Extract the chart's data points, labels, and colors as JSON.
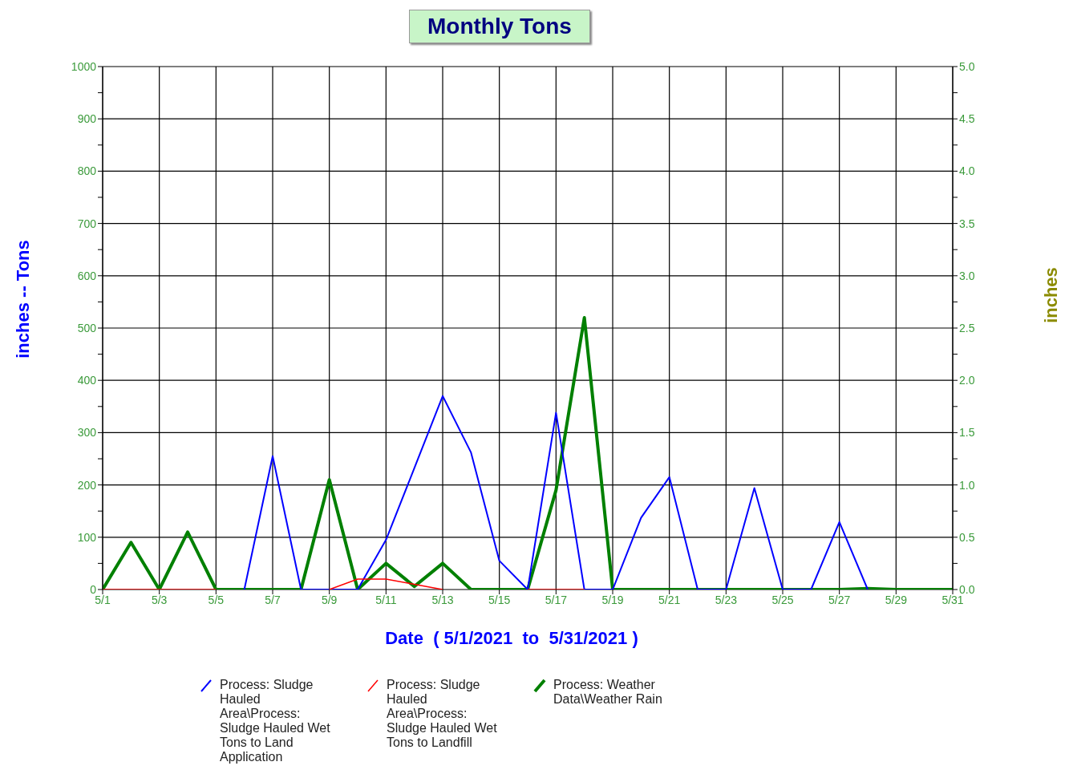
{
  "chart_data": {
    "type": "line",
    "title": "Monthly Tons",
    "xlabel": "Date  ( 5/1/2021  to  5/31/2021 )",
    "ylabel": "inches -- Tons",
    "y2label": "inches",
    "categories": [
      "5/1",
      null,
      "5/3",
      null,
      "5/5",
      null,
      "5/7",
      null,
      "5/9",
      null,
      "5/11",
      null,
      "5/13",
      null,
      "5/15",
      null,
      "5/17",
      null,
      "5/19",
      null,
      "5/21",
      null,
      "5/23",
      null,
      "5/25",
      null,
      "5/27",
      null,
      "5/29",
      null,
      "5/31"
    ],
    "series": [
      {
        "name": "Process: Sludge Hauled Area\\Process: Sludge Hauled Wet Tons to Land Application",
        "color": "#0000ff",
        "values": [
          null,
          null,
          null,
          null,
          null,
          0,
          255,
          0,
          0,
          0,
          95,
          232,
          370,
          262,
          55,
          0,
          338,
          0,
          0,
          137,
          215,
          0,
          0,
          194,
          0,
          0,
          129,
          0,
          null,
          null,
          null
        ]
      },
      {
        "name": "Process: Sludge Hauled Area\\Process: Sludge Hauled Wet Tons to Landfill",
        "color": "#ff0000",
        "values": [
          0,
          0,
          0,
          0,
          0,
          null,
          null,
          null,
          0,
          20,
          20,
          10,
          0,
          null,
          null,
          0,
          0,
          0,
          null,
          null,
          null,
          null,
          null,
          null,
          null,
          null,
          null,
          null,
          null,
          null,
          null
        ]
      },
      {
        "name": "Process: Weather Data\\Weather Rain",
        "color": "#008000",
        "axis": "y2",
        "values": [
          0,
          0.45,
          0,
          0.55,
          0,
          0,
          0,
          0,
          1.05,
          0,
          0.25,
          0.03,
          0.25,
          0,
          0,
          0,
          0.95,
          2.6,
          0,
          0,
          0,
          0,
          0,
          0,
          0,
          0,
          0,
          0.01,
          0,
          0,
          0
        ]
      }
    ],
    "ylim": [
      0,
      1000
    ],
    "yticks": [
      0,
      {
        "value": 50,
        "label": null
      },
      100,
      {
        "value": 150,
        "label": null
      },
      200,
      {
        "value": 250,
        "label": null
      },
      300,
      {
        "value": 350,
        "label": null
      },
      400,
      {
        "value": 450,
        "label": null
      },
      500,
      {
        "value": 550,
        "label": null
      },
      600,
      {
        "value": 650,
        "label": null
      },
      700,
      {
        "value": 750,
        "label": null
      },
      800,
      {
        "value": 850,
        "label": null
      },
      900,
      {
        "value": 950,
        "label": null
      },
      1000
    ],
    "y2lim": [
      0,
      5
    ],
    "y2ticks": [
      {
        "value": 0,
        "label": "0.0"
      },
      {
        "value": 0.25,
        "label": null
      },
      {
        "value": 0.5,
        "label": "0.5"
      },
      {
        "value": 0.75,
        "label": null
      },
      {
        "value": 1,
        "label": "1.0"
      },
      {
        "value": 1.25,
        "label": null
      },
      {
        "value": 1.5,
        "label": "1.5"
      },
      {
        "value": 1.75,
        "label": null
      },
      {
        "value": 2,
        "label": "2.0"
      },
      {
        "value": 2.25,
        "label": null
      },
      {
        "value": 2.5,
        "label": "2.5"
      },
      {
        "value": 2.75,
        "label": null
      },
      {
        "value": 3,
        "label": "3.0"
      },
      {
        "value": 3.25,
        "label": null
      },
      {
        "value": 3.5,
        "label": "3.5"
      },
      {
        "value": 3.75,
        "label": null
      },
      {
        "value": 4,
        "label": "4.0"
      },
      {
        "value": 4.25,
        "label": null
      },
      {
        "value": 4.5,
        "label": "4.5"
      },
      {
        "value": 4.75,
        "label": null
      },
      {
        "value": 5,
        "label": "5.0"
      }
    ],
    "grid": true,
    "legend": "bottom",
    "marker": "none",
    "line_style": "solid"
  }
}
